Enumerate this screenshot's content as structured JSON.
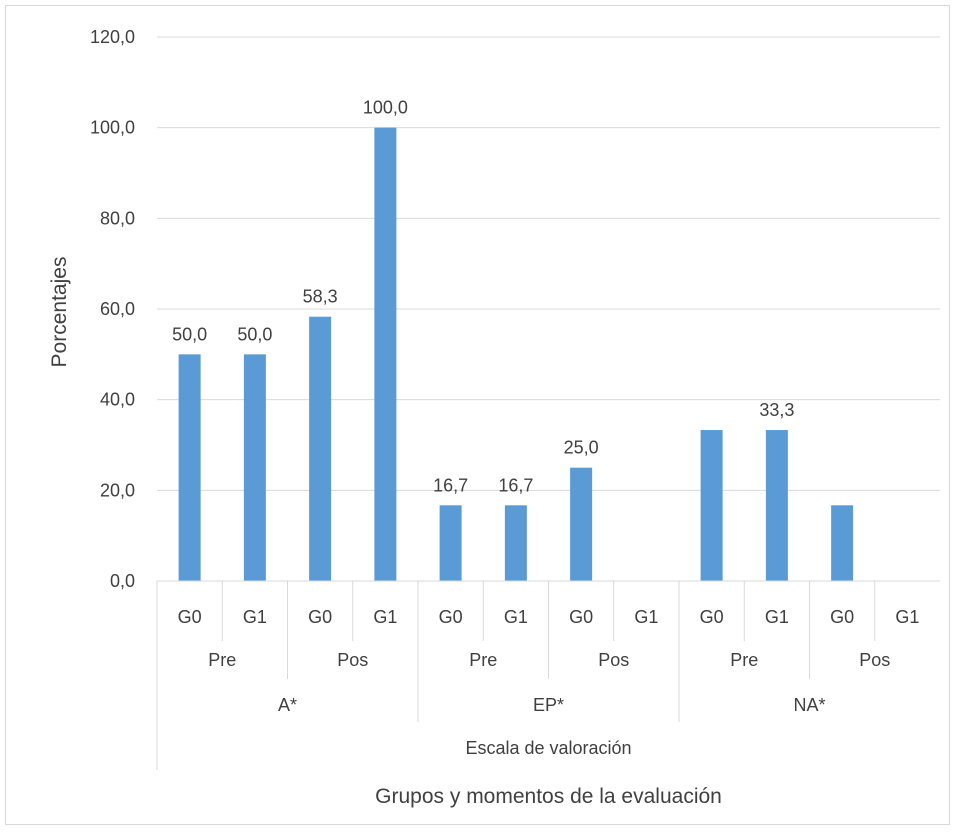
{
  "chart_data": {
    "type": "bar",
    "title": "",
    "ylabel": "Porcentajes",
    "xlabel": "Grupos y momentos de la evaluación",
    "xlabel_level3": "Escala de valoración",
    "ylim": [
      0,
      120
    ],
    "yticks": [
      "0,0",
      "20,0",
      "40,0",
      "60,0",
      "80,0",
      "100,0",
      "120,0"
    ],
    "grid": true,
    "bar_color": "#5b9bd5",
    "categories_groups": [
      "G0",
      "G1",
      "G0",
      "G1",
      "G0",
      "G1",
      "G0",
      "G1",
      "G0",
      "G1",
      "G0",
      "G1"
    ],
    "categories_moments": [
      "Pre",
      "Pos",
      "Pre",
      "Pos",
      "Pre",
      "Pos"
    ],
    "categories_scales": [
      "A*",
      "EP*",
      "NA*"
    ],
    "values": [
      50.0,
      50.0,
      58.3,
      100.0,
      16.7,
      16.7,
      25.0,
      0,
      33.3,
      33.3,
      16.7,
      0
    ],
    "data_labels": [
      "50,0",
      "50,0",
      "58,3",
      "100,0",
      "16,7",
      "16,7",
      "25,0",
      "",
      "",
      "33,3",
      "",
      ""
    ]
  }
}
